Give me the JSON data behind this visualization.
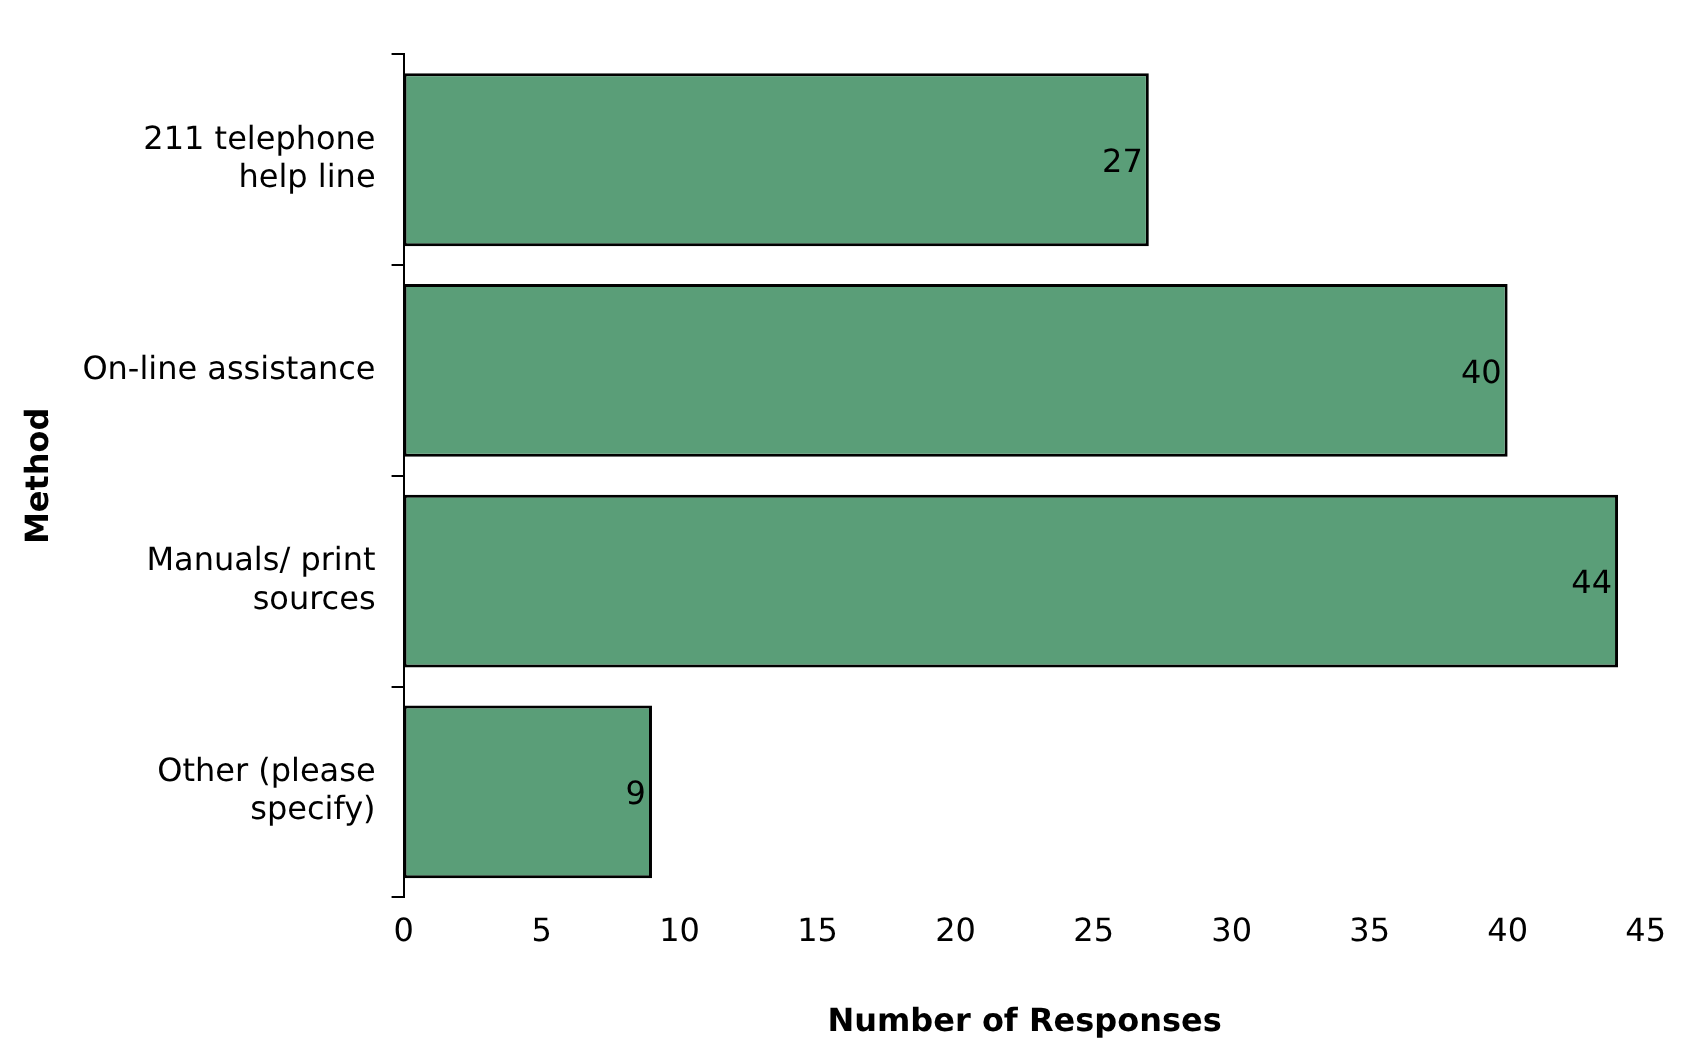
{
  "chart_data": {
    "type": "bar",
    "orientation": "horizontal",
    "xlabel": "Number of Responses",
    "ylabel": "Method",
    "categories": [
      "211 telephone help line",
      "On-line assistance",
      "Manuals/ print sources",
      "Other (please specify)"
    ],
    "values": [
      27,
      40,
      44,
      9
    ],
    "color": "#5a9e78",
    "xlim": [
      0,
      45
    ],
    "xticks": [
      0,
      5,
      10,
      15,
      20,
      25,
      30,
      35,
      40,
      45
    ],
    "grid": false,
    "legend": false,
    "data_labels": true
  }
}
